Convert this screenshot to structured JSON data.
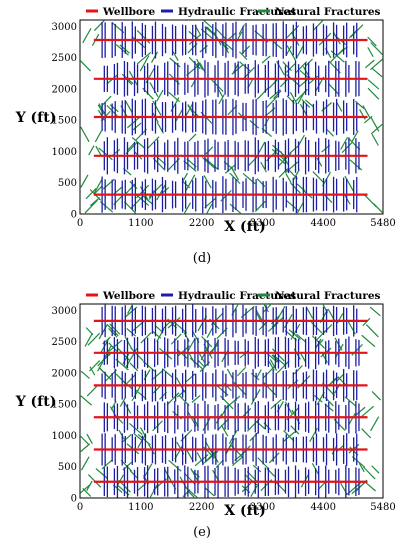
{
  "chart_data": [
    {
      "type": "scatter",
      "caption": "(d)",
      "xlabel": "X (ft)",
      "ylabel": "Y (ft)",
      "xlim": [
        0,
        5480
      ],
      "ylim": [
        0,
        3100
      ],
      "x_ticks": [
        0,
        1100,
        2200,
        3300,
        4400,
        5480
      ],
      "y_ticks": [
        0,
        500,
        1000,
        1500,
        2000,
        2500,
        3000
      ],
      "legend": [
        "Wellbore",
        "Hydraulic Fractures",
        "Natural Fractures"
      ],
      "legend_position": "top",
      "colors": {
        "wellbore": "#e0141c",
        "hydraulic": "#1c1fa3",
        "natural": "#1f8a3c"
      },
      "series": [
        {
          "name": "Wellbore",
          "y": [
            2780,
            2160,
            1550,
            930,
            310
          ],
          "x_start": 250,
          "x_end": 5200
        },
        {
          "name": "Hydraulic Fractures",
          "stages": 26,
          "x_start": 400,
          "x_end": 4950,
          "half_length": 260,
          "clusters_per_stage": 2
        },
        {
          "name": "Natural Fractures",
          "count": 240,
          "x_range": [
            50,
            5400
          ],
          "y_range": [
            20,
            3050
          ],
          "length": 250
        }
      ]
    },
    {
      "type": "scatter",
      "caption": "(e)",
      "xlabel": "X (ft)",
      "ylabel": "Y (ft)",
      "xlim": [
        0,
        5480
      ],
      "ylim": [
        0,
        3100
      ],
      "x_ticks": [
        0,
        1100,
        2200,
        3300,
        4400,
        5480
      ],
      "y_ticks": [
        0,
        500,
        1000,
        1500,
        2000,
        2500,
        3000
      ],
      "legend": [
        "Wellbore",
        "Hydraulic Fractures",
        "Natural Fractures"
      ],
      "legend_position": "top",
      "colors": {
        "wellbore": "#e0141c",
        "hydraulic": "#1c1fa3",
        "natural": "#1f8a3c"
      },
      "series": [
        {
          "name": "Wellbore",
          "y": [
            2830,
            2320,
            1800,
            1290,
            775,
            260
          ],
          "x_start": 250,
          "x_end": 5200
        },
        {
          "name": "Hydraulic Fractures",
          "stages": 26,
          "x_start": 400,
          "x_end": 4950,
          "half_length": 230,
          "clusters_per_stage": 2
        },
        {
          "name": "Natural Fractures",
          "count": 280,
          "x_range": [
            50,
            5400
          ],
          "y_range": [
            20,
            3050
          ],
          "length": 250
        }
      ]
    }
  ]
}
